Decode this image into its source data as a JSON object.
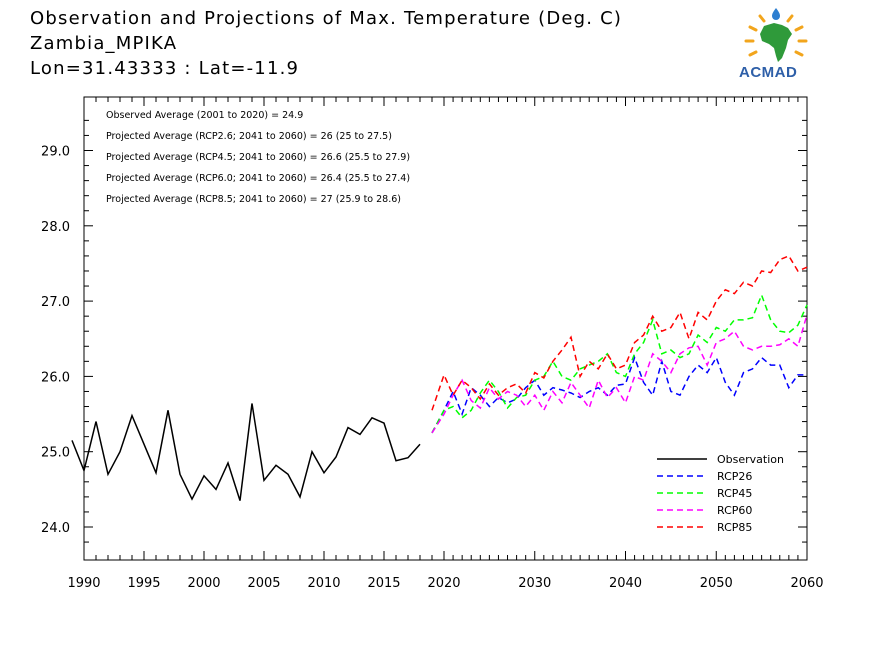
{
  "header": {
    "title": "Observation and Projections of Max. Temperature (Deg. C)",
    "location": "Zambia_MPIKA",
    "coords": "Lon=31.43333 : Lat=-11.9"
  },
  "logo": {
    "text": "ACMAD"
  },
  "annotations": [
    "Observed Average (2001 to 2020) = 24.9",
    "Projected Average (RCP2.6; 2041 to 2060) = 26 (25 to 27.5)",
    "Projected Average (RCP4.5; 2041 to 2060) = 26.6 (25.5 to 27.9)",
    "Projected Average (RCP6.0; 2041 to 2060) = 26.4 (25.5 to 27.4)",
    "Projected Average (RCP8.5; 2041 to 2060) = 27 (25.9 to 28.6)"
  ],
  "chart_data": {
    "type": "line",
    "xlim": [
      1989,
      2060
    ],
    "ylim": [
      23.65,
      29.55
    ],
    "yticks": [
      24.0,
      25.0,
      26.0,
      27.0,
      28.0,
      29.0
    ],
    "ytick_labels": [
      "24.0",
      "25.0",
      "26.0",
      "27.0",
      "28.0",
      "29.0"
    ],
    "xticks": [
      1990,
      1995,
      2000,
      2005,
      2010,
      2015,
      2020,
      2030,
      2040,
      2050,
      2060
    ],
    "xtick_labels": [
      "1990",
      "1995",
      "2000",
      "2005",
      "2010",
      "2015",
      "2020",
      "2030",
      "2040",
      "2050",
      "2060"
    ],
    "legend_position": "bottom-right",
    "series": [
      {
        "name": "Observation",
        "color": "#000000",
        "dash": "solid",
        "x": [
          1989,
          1990,
          1991,
          1992,
          1993,
          1994,
          1995,
          1996,
          1997,
          1998,
          1999,
          2000,
          2001,
          2002,
          2003,
          2004,
          2005,
          2006,
          2007,
          2008,
          2009,
          2010,
          2011,
          2012,
          2013,
          2014,
          2015,
          2016,
          2017,
          2018,
          2019,
          2020
        ],
        "y": [
          25.15,
          24.75,
          25.4,
          24.7,
          25.0,
          25.48,
          25.1,
          24.72,
          25.55,
          24.7,
          24.37,
          24.68,
          24.5,
          24.85,
          24.35,
          25.64,
          24.62,
          24.82,
          24.7,
          24.4,
          25.0,
          24.72,
          24.93,
          25.32,
          25.23,
          25.45,
          25.38,
          24.88,
          24.92,
          25.1,
          null,
          null
        ]
      },
      {
        "name": "RCP26",
        "color": "#0000ff",
        "dash": "dashed",
        "x": [
          2019,
          2020,
          2021,
          2022,
          2023,
          2024,
          2025,
          2026,
          2027,
          2028,
          2029,
          2030,
          2031,
          2032,
          2033,
          2034,
          2035,
          2036,
          2037,
          2038,
          2039,
          2040,
          2041,
          2042,
          2043,
          2044,
          2045,
          2046,
          2047,
          2048,
          2049,
          2050,
          2051,
          2052,
          2053,
          2054,
          2055,
          2056,
          2057,
          2058,
          2059,
          2060
        ],
        "y": [
          25.25,
          25.55,
          25.8,
          25.5,
          25.85,
          25.75,
          25.6,
          25.72,
          25.65,
          25.7,
          25.85,
          25.95,
          25.75,
          25.85,
          25.82,
          25.78,
          25.72,
          25.8,
          25.85,
          25.75,
          25.88,
          25.9,
          26.25,
          25.92,
          25.75,
          26.2,
          25.8,
          25.75,
          26.0,
          26.15,
          26.05,
          26.25,
          25.92,
          25.75,
          26.05,
          26.1,
          26.25,
          26.15,
          26.15,
          25.85,
          26.02,
          26.02
        ]
      },
      {
        "name": "RCP45",
        "color": "#00ff00",
        "dash": "dashed",
        "x": [
          2019,
          2020,
          2021,
          2022,
          2023,
          2024,
          2025,
          2026,
          2027,
          2028,
          2029,
          2030,
          2031,
          2032,
          2033,
          2034,
          2035,
          2036,
          2037,
          2038,
          2039,
          2040,
          2041,
          2042,
          2043,
          2044,
          2045,
          2046,
          2047,
          2048,
          2049,
          2050,
          2051,
          2052,
          2053,
          2054,
          2055,
          2056,
          2057,
          2058,
          2059,
          2060
        ],
        "y": [
          25.25,
          25.55,
          25.6,
          25.45,
          25.55,
          25.78,
          25.95,
          25.8,
          25.58,
          25.72,
          25.75,
          25.95,
          26.0,
          26.2,
          26.0,
          25.95,
          26.1,
          26.15,
          26.2,
          26.3,
          26.05,
          26.0,
          26.3,
          26.45,
          26.75,
          26.3,
          26.35,
          26.25,
          26.3,
          26.55,
          26.45,
          26.65,
          26.6,
          26.75,
          26.75,
          26.78,
          27.08,
          26.75,
          26.6,
          26.58,
          26.68,
          26.95
        ]
      },
      {
        "name": "RCP60",
        "color": "#ff00ff",
        "dash": "dashed",
        "x": [
          2019,
          2020,
          2021,
          2022,
          2023,
          2024,
          2025,
          2026,
          2027,
          2028,
          2029,
          2030,
          2031,
          2032,
          2033,
          2034,
          2035,
          2036,
          2037,
          2038,
          2039,
          2040,
          2041,
          2042,
          2043,
          2044,
          2045,
          2046,
          2047,
          2048,
          2049,
          2050,
          2051,
          2052,
          2053,
          2054,
          2055,
          2056,
          2057,
          2058,
          2059,
          2060
        ],
        "y": [
          25.25,
          25.5,
          25.75,
          25.95,
          25.68,
          25.58,
          25.85,
          25.7,
          25.8,
          25.75,
          25.6,
          25.75,
          25.55,
          25.8,
          25.65,
          25.92,
          25.75,
          25.58,
          25.95,
          25.72,
          25.85,
          25.65,
          26.0,
          25.95,
          26.3,
          26.2,
          26.05,
          26.3,
          26.38,
          26.4,
          26.15,
          26.45,
          26.5,
          26.6,
          26.4,
          26.35,
          26.4,
          26.4,
          26.42,
          26.5,
          26.4,
          26.82
        ]
      },
      {
        "name": "RCP85",
        "color": "#ff0000",
        "dash": "dashed",
        "x": [
          2019,
          2020,
          2021,
          2022,
          2023,
          2024,
          2025,
          2026,
          2027,
          2028,
          2029,
          2030,
          2031,
          2032,
          2033,
          2034,
          2035,
          2036,
          2037,
          2038,
          2039,
          2040,
          2041,
          2042,
          2043,
          2044,
          2045,
          2046,
          2047,
          2048,
          2049,
          2050,
          2051,
          2052,
          2053,
          2054,
          2055,
          2056,
          2057,
          2058,
          2059,
          2060
        ],
        "y": [
          25.55,
          26.02,
          25.75,
          25.95,
          25.85,
          25.7,
          25.9,
          25.75,
          25.85,
          25.9,
          25.78,
          26.05,
          25.98,
          26.2,
          26.35,
          26.52,
          26.0,
          26.2,
          26.1,
          26.3,
          26.1,
          26.15,
          26.45,
          26.55,
          26.8,
          26.6,
          26.65,
          26.85,
          26.5,
          26.85,
          26.75,
          27.0,
          27.15,
          27.1,
          27.25,
          27.2,
          27.4,
          27.38,
          27.55,
          27.6,
          27.4,
          27.45
        ]
      }
    ]
  }
}
